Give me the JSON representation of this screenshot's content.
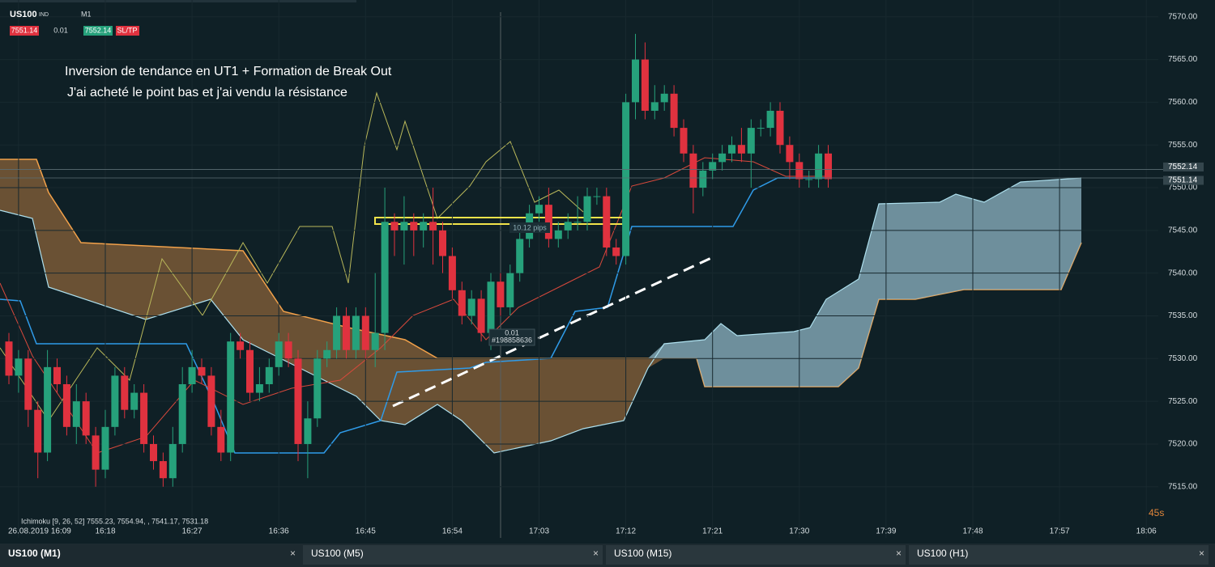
{
  "toolbar": {
    "symbol": "US100",
    "market": "IND",
    "timeframe": "M1",
    "bid": "7551.14",
    "lot": "0.01",
    "ask": "7552.14",
    "sltp": "SL/TP"
  },
  "annotation": [
    "Inversion de tendance en UT1 + Formation de Break Out",
    "J'ai acheté le point bas et j'ai vendu la résistance"
  ],
  "order": {
    "pips": "10.12 pips",
    "lot": "0.01",
    "id": "#198858636"
  },
  "indicator": "Ichimoku [9, 26, 52] 7555.23, 7554.94, , 7541.17, 7531.18",
  "price_labels": [
    {
      "value": 7552.14,
      "label": "7552.14"
    },
    {
      "value": 7551.14,
      "label": "7551.14"
    }
  ],
  "countdown": "45s",
  "tabs": [
    "US100 (M1)",
    "US100 (M5)",
    "US100 (M15)",
    "US100 (H1)"
  ],
  "chart_data": {
    "type": "candlestick",
    "colors": {
      "up": "#26a17b",
      "down": "#e0323f"
    },
    "categories": [
      null,
      "26.08.2019 16:09",
      null,
      null,
      null,
      null,
      null,
      null,
      null,
      null,
      "16:18",
      null,
      null,
      null,
      null,
      null,
      null,
      null,
      null,
      "16:27",
      null,
      null,
      null,
      null,
      null,
      null,
      null,
      null,
      "16:36",
      null,
      null,
      null,
      null,
      null,
      null,
      null,
      null,
      "16:45",
      null,
      null,
      null,
      null,
      null,
      null,
      null,
      null,
      "16:54",
      null,
      null,
      null,
      null,
      null,
      null,
      null,
      null,
      "17:03",
      null,
      null,
      null,
      null,
      null,
      null,
      null,
      null,
      "17:12",
      null,
      null,
      null,
      null,
      null,
      null,
      null,
      null,
      "17:21",
      null,
      null,
      null,
      null,
      null,
      null,
      null,
      null,
      "17:30",
      null,
      null,
      null,
      null,
      null,
      null,
      null,
      null,
      "17:39",
      null,
      null,
      null,
      null,
      null,
      null,
      null,
      null,
      "17:48",
      null,
      null,
      null,
      null,
      null,
      null,
      null,
      null,
      "17:57",
      null,
      null,
      null,
      null,
      null,
      null,
      null,
      null,
      "18:06"
    ],
    "open": [
      7532,
      7528,
      7530,
      7524,
      7519,
      7529,
      7527,
      7522,
      7525,
      7521,
      7517,
      7522,
      7528,
      7524,
      7526,
      7520,
      7518,
      7516,
      7520,
      7527,
      7529,
      7528,
      7522,
      7519,
      7532,
      7531,
      7526,
      7527,
      7529,
      7532,
      7530,
      7520,
      7523,
      7530,
      7531,
      7535,
      7531,
      7535,
      7531,
      7533,
      7546,
      7545,
      7546,
      7545,
      7546,
      7545,
      7542,
      7538,
      7535,
      7537,
      7533,
      7539,
      7536,
      7540,
      7544,
      7547,
      7548,
      7544,
      7545,
      7546,
      7546,
      7549,
      7549,
      7543,
      7542,
      7560,
      7565,
      7559,
      7560,
      7561,
      7557,
      7554,
      7550,
      7552,
      7553,
      7554,
      7555,
      7554,
      7557,
      7557,
      7559,
      7555,
      7553,
      7551,
      7551,
      7554,
      null,
      null,
      null,
      null,
      null,
      null,
      null,
      null,
      null,
      null,
      null,
      null,
      null,
      null,
      null,
      null,
      null,
      null,
      null,
      null,
      null,
      null,
      null,
      null,
      null,
      null,
      null,
      null,
      null,
      null,
      null,
      null,
      null
    ],
    "high": [
      7533,
      7531,
      7531,
      7525,
      7531,
      7530,
      7528,
      7527,
      7526,
      7522,
      7524,
      7529,
      7529,
      7527,
      7527,
      7521,
      7519,
      7522,
      7529,
      7531,
      7530,
      7529,
      7524,
      7533,
      7533,
      7532,
      7529,
      7530,
      7533,
      7533,
      7531,
      7525,
      7531,
      7532,
      7536,
      7536,
      7536,
      7536,
      7540,
      7550,
      7547,
      7549,
      7547,
      7547,
      7550,
      7546,
      7543,
      7539,
      7538,
      7538,
      7540,
      7540,
      7541,
      7545,
      7548,
      7549,
      7550,
      7546,
      7547,
      7549,
      7550,
      7550,
      7550,
      7544,
      7561,
      7568,
      7567,
      7562,
      7562,
      7562,
      7558,
      7555,
      7553,
      7554,
      7555,
      7556,
      7557,
      7558,
      7558,
      7560,
      7560,
      7556,
      7554,
      7552,
      7555,
      7555,
      null,
      null,
      null,
      null,
      null,
      null,
      null,
      null,
      null,
      null,
      null,
      null,
      null,
      null,
      null,
      null,
      null,
      null,
      null,
      null,
      null,
      null,
      null,
      null,
      null,
      null,
      null,
      null,
      null,
      null,
      null,
      null,
      null
    ],
    "low": [
      7527,
      7526,
      7522,
      7516,
      7518,
      7526,
      7521,
      7520,
      7520,
      7515,
      7516,
      7521,
      7523,
      7523,
      7519,
      7517,
      7515,
      7515,
      7519,
      7526,
      7527,
      7521,
      7518,
      7518,
      7530,
      7525,
      7525,
      7526,
      7528,
      7529,
      7518,
      7516,
      7522,
      7529,
      7530,
      7530,
      7530,
      7530,
      7529,
      7531,
      7542,
      7541,
      7542,
      7543,
      7541,
      7540,
      7537,
      7534,
      7534,
      7532,
      7531,
      7535,
      7535,
      7539,
      7543,
      7546,
      7543,
      7543,
      7544,
      7545,
      7545,
      7548,
      7542,
      7541,
      7541,
      7558,
      7558,
      7558,
      7559,
      7556,
      7553,
      7547,
      7549,
      7551,
      7552,
      7553,
      7553,
      7550,
      7556,
      7556,
      7554,
      7551,
      7550,
      7550,
      7550,
      7550,
      null,
      null,
      null,
      null,
      null,
      null,
      null,
      null,
      null,
      null,
      null,
      null,
      null,
      null,
      null,
      null,
      null,
      null,
      null,
      null,
      null,
      null,
      null,
      null,
      null,
      null,
      null,
      null,
      null,
      null,
      null,
      null,
      null
    ],
    "close": [
      7528,
      7530,
      7524,
      7519,
      7529,
      7527,
      7522,
      7525,
      7521,
      7517,
      7522,
      7528,
      7524,
      7526,
      7520,
      7518,
      7516,
      7520,
      7527,
      7529,
      7528,
      7522,
      7519,
      7532,
      7531,
      7526,
      7527,
      7529,
      7532,
      7530,
      7520,
      7523,
      7530,
      7531,
      7535,
      7531,
      7535,
      7531,
      7533,
      7546,
      7545,
      7546,
      7545,
      7546,
      7545,
      7542,
      7538,
      7535,
      7537,
      7533,
      7539,
      7536,
      7540,
      7544,
      7547,
      7548,
      7544,
      7545,
      7546,
      7546,
      7549,
      7549,
      7543,
      7542,
      7560,
      7565,
      7559,
      7560,
      7561,
      7557,
      7554,
      7550,
      7552,
      7553,
      7554,
      7555,
      7554,
      7557,
      7557,
      7559,
      7555,
      7553,
      7551,
      7551,
      7554,
      7551,
      null,
      null,
      null,
      null,
      null,
      null,
      null,
      null,
      null,
      null,
      null,
      null,
      null,
      null,
      null,
      null,
      null,
      null,
      null,
      null,
      null,
      null,
      null,
      null,
      null,
      null,
      null,
      null,
      null,
      null,
      null,
      null,
      null
    ],
    "ylim": [
      7513,
      7573.3
    ],
    "yticks": [
      {
        "value": 7515,
        "label": "7515.00"
      },
      {
        "value": 7520,
        "label": "7520.00"
      },
      {
        "value": 7525,
        "label": "7525.00"
      },
      {
        "value": 7530,
        "label": "7530.00"
      },
      {
        "value": 7535,
        "label": "7535.00"
      },
      {
        "value": 7540,
        "label": "7540.00"
      },
      {
        "value": 7545,
        "label": "7545.00"
      },
      {
        "value": 7550,
        "label": "7550.00"
      },
      {
        "value": 7555,
        "label": "7555.00"
      },
      {
        "value": 7560,
        "label": "7560.00"
      },
      {
        "value": 7565,
        "label": "7565.00"
      },
      {
        "value": 7570,
        "label": "7570.00"
      }
    ],
    "grid": true
  }
}
